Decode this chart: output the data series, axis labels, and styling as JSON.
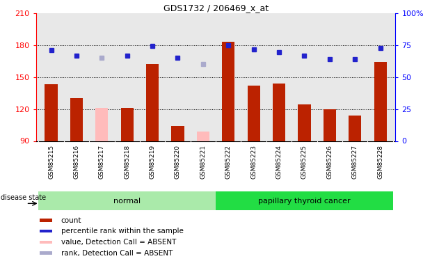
{
  "title": "GDS1732 / 206469_x_at",
  "samples": [
    "GSM85215",
    "GSM85216",
    "GSM85217",
    "GSM85218",
    "GSM85219",
    "GSM85220",
    "GSM85221",
    "GSM85222",
    "GSM85223",
    "GSM85224",
    "GSM85225",
    "GSM85226",
    "GSM85227",
    "GSM85228"
  ],
  "bar_values": [
    143,
    130,
    121,
    121,
    162,
    104,
    99,
    183,
    142,
    144,
    124,
    120,
    114,
    164
  ],
  "bar_absent": [
    false,
    false,
    true,
    false,
    false,
    false,
    true,
    false,
    false,
    false,
    false,
    false,
    false,
    false
  ],
  "dot_values": [
    175,
    170,
    168,
    170,
    179,
    168,
    162,
    180,
    176,
    173,
    170,
    167,
    167,
    177
  ],
  "dot_absent": [
    false,
    false,
    true,
    false,
    false,
    false,
    true,
    false,
    false,
    false,
    false,
    false,
    false,
    false
  ],
  "groups": [
    {
      "label": "normal",
      "start": 0,
      "end": 7,
      "color": "#aaeaaa"
    },
    {
      "label": "papillary thyroid cancer",
      "start": 7,
      "end": 14,
      "color": "#22dd44"
    }
  ],
  "disease_state_label": "disease state",
  "ylim_left": [
    90,
    210
  ],
  "ylim_right": [
    0,
    100
  ],
  "yticks_left": [
    90,
    120,
    150,
    180,
    210
  ],
  "yticks_right": [
    0,
    25,
    50,
    75,
    100
  ],
  "ytick_labels_left": [
    "90",
    "120",
    "150",
    "180",
    "210"
  ],
  "ytick_labels_right": [
    "0",
    "25",
    "50",
    "75",
    "100%"
  ],
  "bar_color_present": "#bb2200",
  "bar_color_absent": "#ffbbbb",
  "dot_color_present": "#2222cc",
  "dot_color_absent": "#aaaacc",
  "legend_items": [
    {
      "label": "count",
      "color": "#bb2200"
    },
    {
      "label": "percentile rank within the sample",
      "color": "#2222cc"
    },
    {
      "label": "value, Detection Call = ABSENT",
      "color": "#ffbbbb"
    },
    {
      "label": "rank, Detection Call = ABSENT",
      "color": "#aaaacc"
    }
  ],
  "plot_bg": "#e8e8e8",
  "fig_bg": "#ffffff",
  "gridline_values": [
    120,
    150,
    180
  ],
  "tick_label_bg": "#d8d8d8"
}
